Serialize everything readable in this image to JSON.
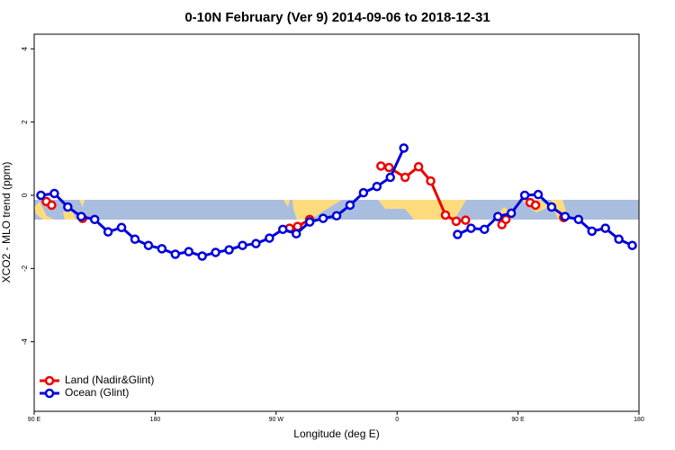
{
  "chart_data": {
    "type": "line",
    "title": "0-10N February (Ver 9)   2014-09-06 to 2018-12-31",
    "xlabel": "Longitude (deg E)",
    "ylabel": "XCO2 - MLO trend (ppm)",
    "xlim": [
      90,
      540
    ],
    "xticks": [
      {
        "value": 90,
        "label": "90 E"
      },
      180,
      {
        "value": 270,
        "label": "90 W"
      },
      {
        "value": 360,
        "label": "0"
      },
      {
        "value": 450,
        "label": "90 E"
      },
      {
        "value": 540,
        "label": "180"
      }
    ],
    "ylim": [
      -5.9,
      4.4
    ],
    "yticks": [
      4,
      2,
      0,
      -2,
      -4
    ],
    "legend": "lower left",
    "series": [
      {
        "name": "Land (Nadir&Glint)",
        "color": "#ee0000",
        "x": [
          99,
          103,
          null,
          126,
          null,
          280,
          286,
          295,
          null,
          348,
          354,
          366,
          376,
          385,
          396,
          404,
          411,
          null,
          438,
          441,
          null,
          459,
          463,
          null,
          484
        ],
        "values": [
          -0.17,
          -0.27,
          null,
          -0.63,
          null,
          -0.9,
          -0.85,
          -0.66,
          null,
          0.8,
          0.76,
          0.49,
          0.78,
          0.39,
          -0.54,
          -0.71,
          -0.68,
          null,
          -0.8,
          -0.66,
          null,
          -0.2,
          -0.27,
          null,
          -0.61
        ]
      },
      {
        "name": "Ocean (Glint)",
        "color": "#0000dd",
        "x": [
          95,
          105,
          115,
          125,
          135,
          145,
          155,
          165,
          175,
          185,
          195,
          205,
          215,
          225,
          235,
          245,
          255,
          265,
          275,
          285,
          295,
          305,
          315,
          325,
          335,
          345,
          355,
          365,
          375,
          385,
          395,
          405,
          415,
          425,
          435,
          445,
          455,
          465,
          475,
          485,
          495,
          505,
          515,
          525,
          535
        ],
        "values": [
          0.0,
          0.05,
          -0.32,
          -0.58,
          -0.66,
          -1.0,
          -0.88,
          -1.2,
          -1.37,
          -1.46,
          -1.61,
          -1.54,
          -1.66,
          -1.56,
          -1.49,
          -1.37,
          -1.32,
          -1.17,
          -0.93,
          -1.05,
          -0.73,
          -0.63,
          -0.56,
          -0.27,
          0.07,
          0.24,
          0.49,
          1.29,
          null,
          null,
          null,
          -1.07,
          -0.9,
          -0.93,
          -0.58,
          -0.49,
          0.0,
          0.02,
          -0.32,
          -0.58,
          -0.66,
          -0.98,
          -0.9,
          -1.2,
          -1.37
        ]
      }
    ]
  }
}
